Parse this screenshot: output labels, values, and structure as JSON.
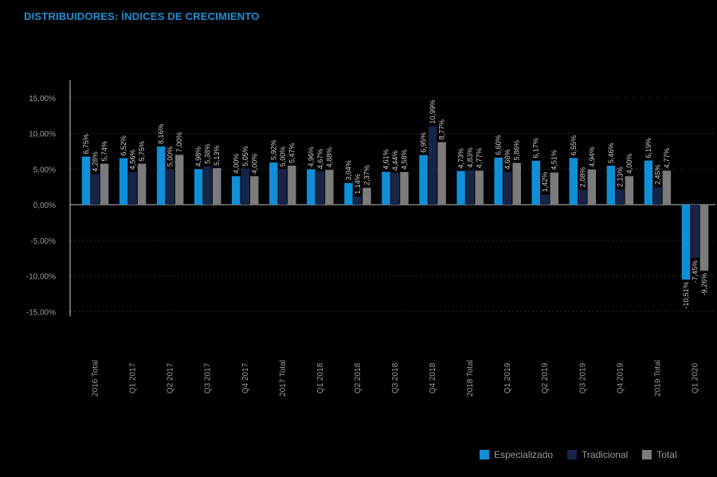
{
  "title": "DISTRIBUIDORES: ÍNDICES DE CRECIMIENTO",
  "colors": {
    "background": "#000000",
    "title": "#1b8fd6",
    "axis_text": "#9a9a9a",
    "grid": "#3a3a3a"
  },
  "chart_data": {
    "type": "bar",
    "title": "DISTRIBUIDORES: ÍNDICES DE CRECIMIENTO",
    "xlabel": "",
    "ylabel": "",
    "ylim": [
      -15,
      15
    ],
    "yticks": [
      "15,00%",
      "10,00%",
      "5,00%",
      "0,00%",
      "-5,00%",
      "-10,00%",
      "-15,00%"
    ],
    "grid": true,
    "legend_position": "bottom-right",
    "categories": [
      "2016 Total",
      "Q1 2017",
      "Q2 2017",
      "Q3 2017",
      "Q4 2017",
      "2017 Total",
      "Q1 2018",
      "Q2 2018",
      "Q3 2018",
      "Q4 2018",
      "2018 Total",
      "Q1 2019",
      "Q2 2019",
      "Q3 2019",
      "Q4 2019",
      "2019 Total",
      "Q1 2020"
    ],
    "series": [
      {
        "name": "Especializado",
        "color": "#0f8fd8",
        "values": [
          6.75,
          6.52,
          8.16,
          4.98,
          4.0,
          5.92,
          4.96,
          3.04,
          4.61,
          6.95,
          4.73,
          6.6,
          6.17,
          6.55,
          5.46,
          6.19,
          -10.51
        ],
        "labels": [
          "6,75%",
          "6,52%",
          "8,16%",
          "4,98%",
          "4,00%",
          "5,92%",
          "4,96%",
          "3,04%",
          "4,61%",
          "6,95%",
          "4,73%",
          "6,60%",
          "6,17%",
          "6,55%",
          "5,46%",
          "6,19%",
          "-10,51%"
        ]
      },
      {
        "name": "Tradicional",
        "color": "#162447",
        "values": [
          4.28,
          4.56,
          5.0,
          5.38,
          5.05,
          5.0,
          4.67,
          1.14,
          4.44,
          10.99,
          4.83,
          4.6,
          1.42,
          2.08,
          2.13,
          2.45,
          -7.45
        ],
        "labels": [
          "4,28%",
          "4,56%",
          "5,00%",
          "5,38%",
          "5,05%",
          "5,00%",
          "4,67%",
          "1,14%",
          "4,44%",
          "10,99%",
          "4,83%",
          "4,60%",
          "1,42%",
          "2,08%",
          "2,13%",
          "2,45%",
          "-7,45%"
        ]
      },
      {
        "name": "Total",
        "color": "#7b7b7b",
        "values": [
          5.74,
          5.75,
          7.0,
          5.13,
          4.0,
          5.47,
          4.88,
          2.37,
          4.58,
          8.77,
          4.77,
          5.86,
          4.51,
          4.94,
          4.0,
          4.77,
          -9.26
        ],
        "labels": [
          "5,74%",
          "5,75%",
          "7,00%",
          "5,13%",
          "4,00%",
          "5,47%",
          "4,88%",
          "2,37%",
          "4,58%",
          "8,77%",
          "4,77%",
          "5,86%",
          "4,51%",
          "4,94%",
          "4,00%",
          "4,77%",
          "-9,26%"
        ]
      }
    ]
  }
}
